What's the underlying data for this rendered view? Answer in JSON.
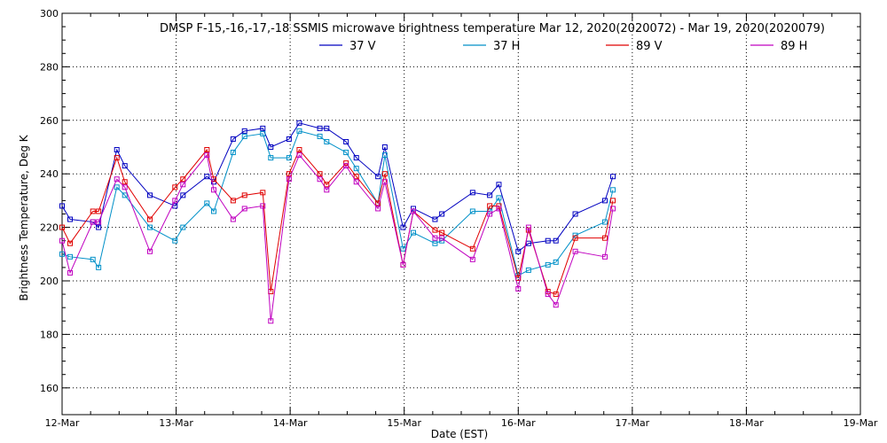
{
  "chart_data": {
    "type": "line",
    "title": "DMSP F-15,-16,-17,-18 SSMIS microwave brightness temperature Mar 12, 2020(2020072) - Mar 19, 2020(2020079)",
    "xlabel": "Date (EST)",
    "ylabel": "Brightness Temperature, Deg K",
    "xlim": [
      0,
      7
    ],
    "ylim": [
      150,
      300
    ],
    "x_ticks": [
      "12-Mar",
      "13-Mar",
      "14-Mar",
      "15-Mar",
      "16-Mar",
      "17-Mar",
      "18-Mar",
      "19-Mar"
    ],
    "y_ticks": [
      160,
      180,
      200,
      220,
      240,
      260,
      280,
      300
    ],
    "grid": true,
    "legend_position": "top-center",
    "series": [
      {
        "name": "37 V",
        "color": "#0000c0",
        "x": [
          0.0,
          0.07,
          0.27,
          0.32,
          0.48,
          0.55,
          0.77,
          0.99,
          1.06,
          1.27,
          1.33,
          1.5,
          1.6,
          1.76,
          1.83,
          1.99,
          2.08,
          2.26,
          2.32,
          2.49,
          2.58,
          2.77,
          2.83,
          2.99,
          3.08,
          3.27,
          3.33,
          3.6,
          3.75,
          3.83,
          4.0,
          4.09,
          4.26,
          4.33,
          4.5,
          4.76
        ],
        "y": [
          228,
          223,
          222,
          220,
          249,
          243,
          232,
          228,
          232,
          239,
          237,
          253,
          256,
          257,
          250,
          253,
          259,
          257,
          257,
          252,
          246,
          239,
          250,
          220,
          227,
          223,
          225,
          233,
          232,
          236,
          211,
          214,
          215,
          215,
          225,
          230
        ]
      },
      {
        "name": "37 H",
        "color": "#0090c8",
        "x": [
          0.0,
          0.07,
          0.27,
          0.32,
          0.48,
          0.55,
          0.77,
          0.99,
          1.06,
          1.27,
          1.33,
          1.5,
          1.6,
          1.76,
          1.83,
          1.99,
          2.08,
          2.26,
          2.32,
          2.49,
          2.58,
          2.77,
          2.83,
          2.99,
          3.08,
          3.27,
          3.33,
          3.6,
          3.75,
          3.83,
          4.0,
          4.09,
          4.26,
          4.33,
          4.5,
          4.76
        ],
        "y": [
          210,
          209,
          208,
          205,
          235,
          232,
          220,
          215,
          220,
          229,
          226,
          248,
          254,
          255,
          246,
          246,
          256,
          254,
          252,
          248,
          242,
          229,
          247,
          212,
          218,
          214,
          215,
          226,
          226,
          231,
          202,
          204,
          206,
          207,
          217,
          222
        ]
      },
      {
        "name": "89 V",
        "color": "#e00000",
        "x": [
          0.0,
          0.07,
          0.27,
          0.32,
          0.48,
          0.55,
          0.77,
          0.99,
          1.06,
          1.27,
          1.33,
          1.5,
          1.6,
          1.76,
          1.83,
          1.99,
          2.08,
          2.26,
          2.32,
          2.49,
          2.58,
          2.77,
          2.83,
          2.99,
          3.08,
          3.27,
          3.33,
          3.6,
          3.75,
          3.83,
          4.0,
          4.09,
          4.26,
          4.33,
          4.5,
          4.76
        ],
        "y": [
          220,
          214,
          226,
          226,
          246,
          237,
          223,
          235,
          238,
          249,
          238,
          230,
          232,
          233,
          196,
          240,
          249,
          240,
          236,
          244,
          239,
          229,
          240,
          206,
          226,
          219,
          218,
          212,
          228,
          228,
          201,
          219,
          196,
          195,
          216,
          216
        ]
      },
      {
        "name": "89 H",
        "color": "#c000c0",
        "x": [
          0.0,
          0.07,
          0.27,
          0.32,
          0.48,
          0.55,
          0.77,
          0.99,
          1.06,
          1.27,
          1.33,
          1.5,
          1.6,
          1.76,
          1.83,
          1.99,
          2.08,
          2.26,
          2.32,
          2.49,
          2.58,
          2.77,
          2.83,
          2.99,
          3.08,
          3.27,
          3.33,
          3.6,
          3.75,
          3.83,
          4.0,
          4.09,
          4.26,
          4.33,
          4.5,
          4.76
        ],
        "y": [
          215,
          203,
          222,
          222,
          238,
          235,
          211,
          230,
          236,
          247,
          234,
          223,
          227,
          228,
          185,
          238,
          247,
          238,
          234,
          243,
          237,
          227,
          237,
          206,
          226,
          216,
          216,
          208,
          225,
          227,
          197,
          220,
          195,
          191,
          211,
          209
        ]
      }
    ],
    "series_end_points": {
      "x": [
        4.83,
        4.83,
        4.83,
        4.83
      ],
      "y": [
        239,
        234,
        230,
        227
      ]
    }
  }
}
